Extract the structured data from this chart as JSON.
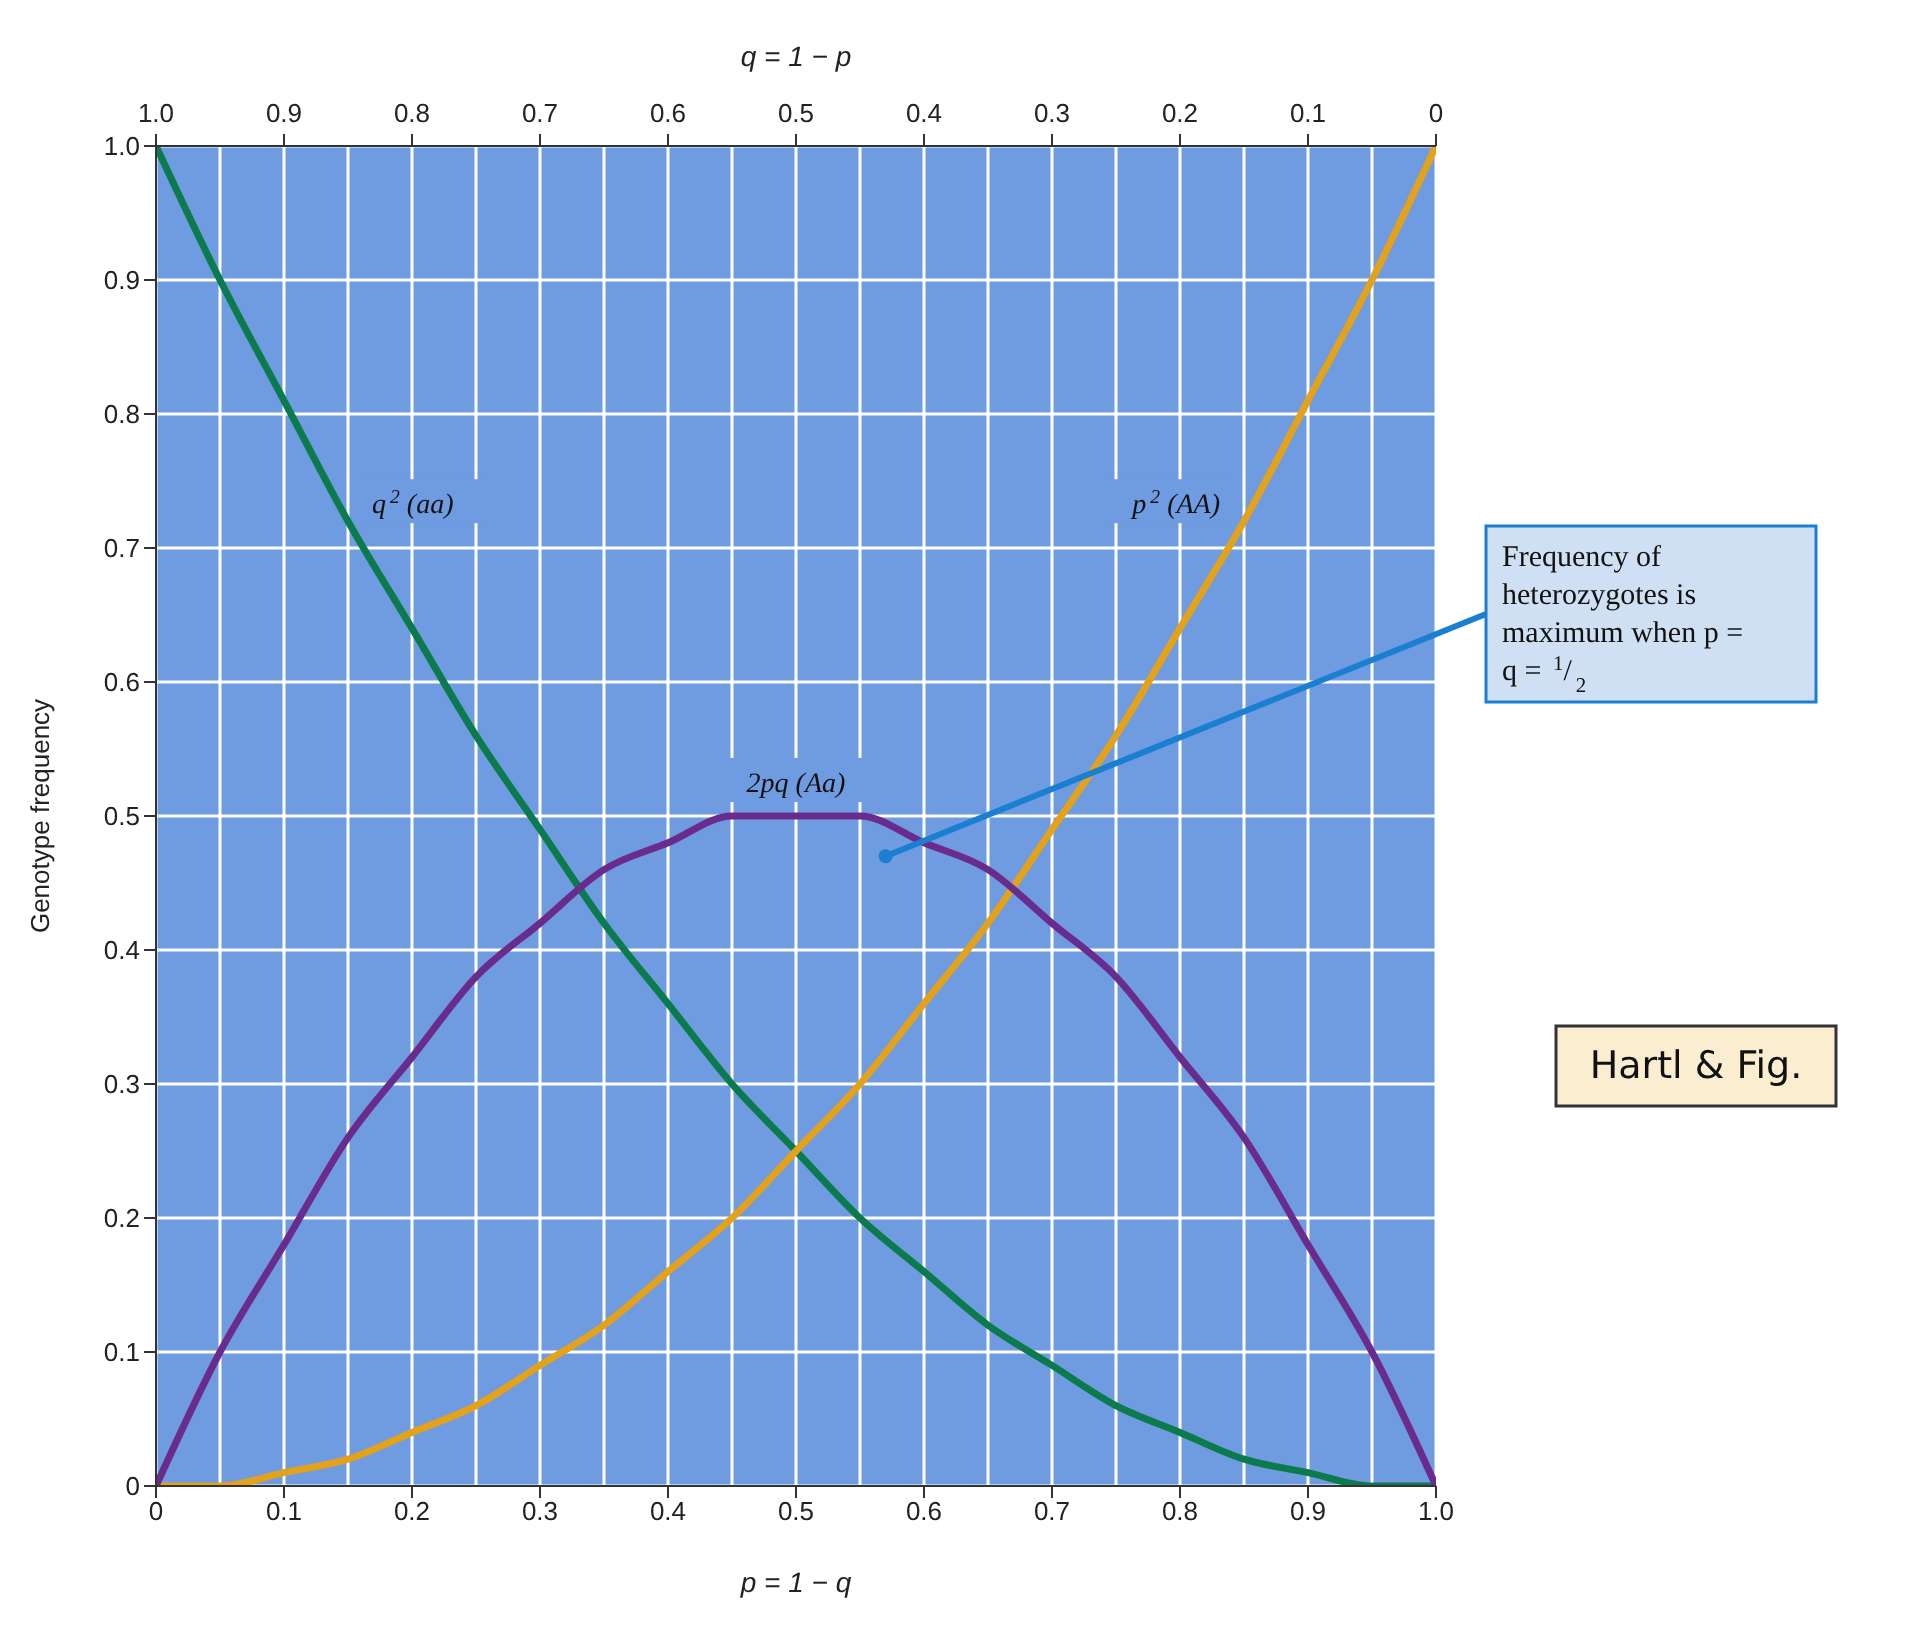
{
  "chart_data": {
    "type": "line",
    "xlabel": "p = 1 − q",
    "x2label": "q = 1 − p",
    "ylabel": "Genotype frequency",
    "x": [
      0,
      0.05,
      0.1,
      0.15,
      0.2,
      0.25,
      0.3,
      0.35,
      0.4,
      0.45,
      0.5,
      0.55,
      0.6,
      0.65,
      0.7,
      0.75,
      0.8,
      0.85,
      0.9,
      0.95,
      1
    ],
    "series": [
      {
        "name": "q$^{2}$ (aa)",
        "color": "#0b7a4c",
        "values": [
          1,
          0.9,
          0.81,
          0.72,
          0.64,
          0.56,
          0.49,
          0.42,
          0.36,
          0.3,
          0.25,
          0.2,
          0.16,
          0.12,
          0.09,
          0.06,
          0.04,
          0.02,
          0.01,
          0,
          0
        ]
      },
      {
        "name": "p$^{2}$ (AA)",
        "color": "#e3a21a",
        "values": [
          0,
          0,
          0.01,
          0.02,
          0.04,
          0.06,
          0.09,
          0.12,
          0.16,
          0.2,
          0.25,
          0.3,
          0.36,
          0.42,
          0.49,
          0.56,
          0.64,
          0.72,
          0.81,
          0.9,
          1
        ]
      },
      {
        "name": "2pq (Aa)",
        "color": "#6a2c8c",
        "values": [
          0,
          0.1,
          0.18,
          0.26,
          0.32,
          0.38,
          0.42,
          0.46,
          0.48,
          0.5,
          0.5,
          0.5,
          0.48,
          0.46,
          0.42,
          0.38,
          0.32,
          0.26,
          0.18,
          0.1,
          0
        ]
      }
    ],
    "xlim": [
      0,
      1
    ],
    "xticks": [
      0,
      0.1,
      0.2,
      0.3,
      0.4,
      0.5,
      0.6,
      0.7,
      0.8,
      0.9,
      {
        "value": 1,
        "label": "1.0"
      }
    ],
    "x2lim": [
      1,
      0
    ],
    "x2ticks": [
      {
        "value": 1,
        "label": "1.0"
      },
      0.9,
      0.8,
      0.7,
      0.6,
      0.5,
      0.4,
      0.3,
      0.2,
      0.1,
      0
    ],
    "ylim": [
      0,
      1
    ],
    "yticks": [
      0,
      0.1,
      0.2,
      0.3,
      0.4,
      0.5,
      0.6,
      0.7,
      0.8,
      0.9,
      {
        "value": 1,
        "label": "1.0"
      }
    ],
    "grid": true,
    "marker": "none",
    "line_style": "solid",
    "annotations": [
      {
        "text": "Frequency of heterozygotes is maximum when p = q = $^{1}$/$_{2}$",
        "x": 0.57,
        "y": 0.47
      },
      "Hartl & Fig."
    ]
  }
}
